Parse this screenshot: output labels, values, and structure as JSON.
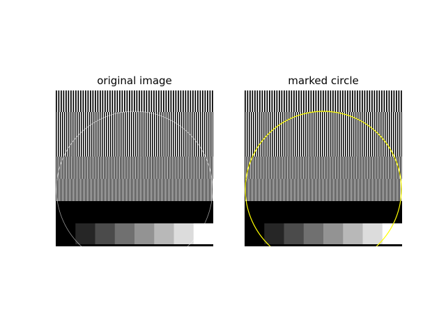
{
  "figure": {
    "panels": [
      {
        "title": "original image",
        "circle_color": "#ffffff",
        "circle_opacity": 0.6
      },
      {
        "title": "marked circle",
        "circle_color": "#ffff00",
        "circle_opacity": 1.0
      }
    ],
    "image": {
      "stripe_bands": [
        {
          "period": 3.5
        },
        {
          "period": 3.0
        },
        {
          "period": 2.3
        },
        {
          "period": 2.0
        }
      ],
      "gray_levels": [
        "#000000",
        "#262626",
        "#4b4b4b",
        "#707070",
        "#939393",
        "#b8b8b8",
        "#dcdcdc",
        "#ffffff"
      ]
    }
  }
}
